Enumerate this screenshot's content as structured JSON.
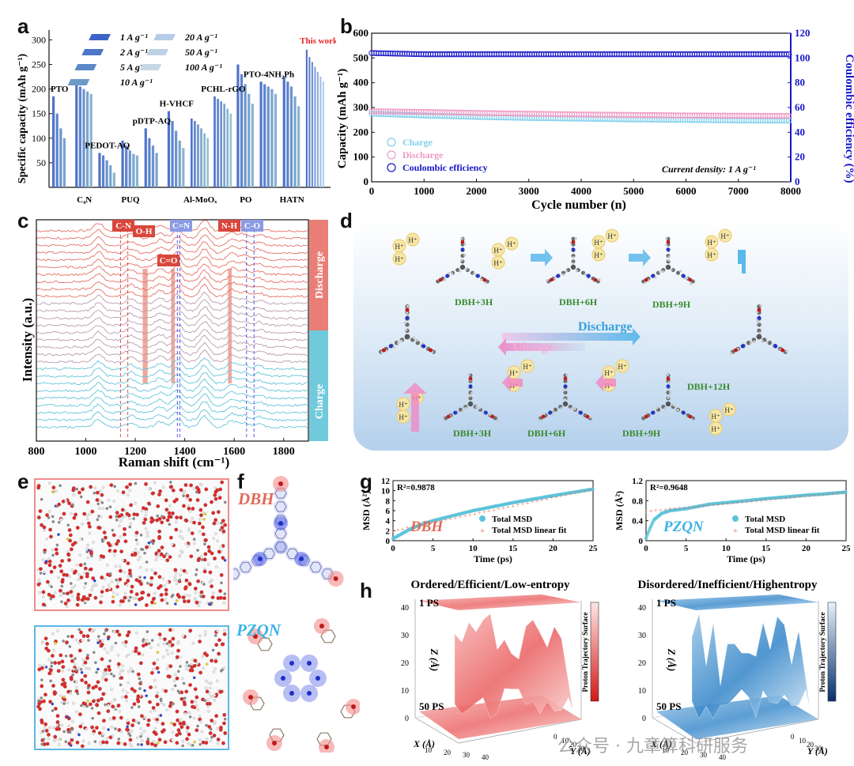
{
  "panel_labels": {
    "a": "a",
    "b": "b",
    "c": "c",
    "d": "d",
    "e": "e",
    "f": "f",
    "g": "g",
    "h": "h"
  },
  "colors": {
    "blue_dark": "#2f4fb0",
    "blue_light": "#9fbbe6",
    "pink": "#ef9ac4",
    "cyan": "#7fd0ec",
    "red": "#d94a3f",
    "navy": "#1818c8",
    "cyan_line": "#5bc3da",
    "salmon": "#e5705e"
  },
  "chart_data": [
    {
      "id": "a",
      "type": "bar",
      "ylabel": "Specific capacity (mAh g⁻¹)",
      "ylim": [
        0,
        320
      ],
      "yticks": [
        50,
        100,
        150,
        200,
        250,
        300
      ],
      "legend": [
        "1 A g⁻¹",
        "2 A g⁻¹",
        "5 A g⁻¹",
        "10 A g⁻¹",
        "20 A g⁻¹",
        "50 A g⁻¹",
        "100 A g⁻¹"
      ],
      "highlight": "This work",
      "groups": [
        {
          "name": "PTO",
          "values": [
            185,
            150,
            120,
            100
          ],
          "label_pos": "above"
        },
        {
          "name": "C₄N",
          "values": [
            215,
            205,
            200,
            195,
            190
          ],
          "label_pos": "below"
        },
        {
          "name": "PEDOT-AQ",
          "values": [
            70,
            65,
            55,
            45,
            30
          ],
          "label_pos": "above"
        },
        {
          "name": "PUQ",
          "values": [
            95,
            85,
            75,
            68,
            65
          ],
          "label_pos": "below"
        },
        {
          "name": "pDTP-AQ",
          "values": [
            120,
            100,
            85,
            70
          ],
          "label_pos": "above"
        },
        {
          "name": "H-VHCF",
          "values": [
            155,
            135,
            115,
            95,
            80
          ],
          "label_pos": "above"
        },
        {
          "name": "Al-MoOₓ",
          "values": [
            140,
            135,
            128,
            120,
            110,
            100
          ],
          "label_pos": "below"
        },
        {
          "name": "PCHL-rGO",
          "values": [
            185,
            180,
            175,
            170,
            160,
            150
          ],
          "label_pos": "above"
        },
        {
          "name": "PO",
          "values": [
            250,
            230,
            210,
            190,
            170
          ],
          "label_pos": "below"
        },
        {
          "name": "PTO-4NH₂Ph",
          "values": [
            215,
            210,
            205,
            200,
            190
          ],
          "label_pos": "above"
        },
        {
          "name": "HATN",
          "values": [
            225,
            215,
            205,
            185,
            165
          ],
          "label_pos": "below"
        },
        {
          "name": "This work",
          "values": [
            280,
            265,
            255,
            245,
            235,
            225,
            215
          ],
          "label_pos": "none"
        }
      ]
    },
    {
      "id": "b",
      "type": "scatter",
      "xlabel": "Cycle number (n)",
      "ylabel": "Capacity (mAh g⁻¹)",
      "y2label": "Coulombic efficiency (%)",
      "xlim": [
        0,
        8000
      ],
      "ylim": [
        0,
        600
      ],
      "y2lim": [
        0,
        120
      ],
      "xticks": [
        0,
        1000,
        2000,
        3000,
        4000,
        5000,
        6000,
        7000,
        8000
      ],
      "yticks": [
        0,
        100,
        200,
        300,
        400,
        500,
        600
      ],
      "y2ticks": [
        0,
        20,
        40,
        60,
        80,
        100,
        120
      ],
      "annotation": "Current density: 1 A g⁻¹",
      "series": [
        {
          "name": "Charge",
          "x": [
            0,
            1000,
            2000,
            3000,
            4000,
            5000,
            6000,
            7000,
            8000
          ],
          "values": [
            275,
            268,
            262,
            258,
            255,
            252,
            250,
            248,
            247
          ]
        },
        {
          "name": "Discharge",
          "x": [
            0,
            1000,
            2000,
            3000,
            4000,
            5000,
            6000,
            7000,
            8000
          ],
          "values": [
            285,
            282,
            278,
            275,
            272,
            270,
            268,
            267,
            266
          ]
        },
        {
          "name": "Coulombic efficiency",
          "x": [
            0,
            1000,
            2000,
            3000,
            4000,
            5000,
            6000,
            7000,
            8000
          ],
          "values": [
            104,
            103,
            103,
            103,
            103,
            103,
            103,
            103,
            103
          ]
        }
      ]
    },
    {
      "id": "c",
      "type": "line",
      "xlabel": "Raman shift (cm⁻¹)",
      "ylabel": "Intensity (a.u.)",
      "xlim": [
        800,
        1900
      ],
      "xticks": [
        800,
        1000,
        1200,
        1400,
        1600,
        1800
      ],
      "tags": [
        "C-N",
        "O-H",
        "C=N",
        "N-H",
        "C=O",
        "C-O"
      ],
      "side_labels": [
        "Discharge",
        "Charge"
      ]
    },
    {
      "id": "g1",
      "type": "line",
      "xlabel": "Time (ps)",
      "ylabel": "MSD (Å²)",
      "xlim": [
        0,
        25
      ],
      "ylim": [
        0,
        12
      ],
      "xticks": [
        0,
        5,
        10,
        15,
        20,
        25
      ],
      "yticks": [
        0,
        2,
        4,
        6,
        8,
        10,
        12
      ],
      "r2": "R²=0.9878",
      "name": "DBH",
      "series": [
        {
          "name": "Total MSD",
          "x": [
            0,
            1,
            2,
            3,
            4,
            5,
            7,
            10,
            15,
            20,
            25
          ],
          "values": [
            0.4,
            1.3,
            2.2,
            2.9,
            3.5,
            4.0,
            4.8,
            6.0,
            7.6,
            9.0,
            10.3
          ]
        },
        {
          "name": "Total MSD linear fit",
          "x": [
            0,
            25
          ],
          "values": [
            2.0,
            10.3
          ]
        }
      ]
    },
    {
      "id": "g2",
      "type": "line",
      "xlabel": "Time (ps)",
      "ylabel": "MSD (Å²)",
      "xlim": [
        0,
        25
      ],
      "ylim": [
        0,
        1.2
      ],
      "xticks": [
        0,
        5,
        10,
        15,
        20,
        25
      ],
      "yticks": [
        0.0,
        0.4,
        0.8,
        1.2
      ],
      "r2": "R²=0.9648",
      "name": "PZQN",
      "series": [
        {
          "name": "Total MSD",
          "x": [
            0,
            0.5,
            1,
            2,
            3,
            4,
            5,
            6,
            8,
            10,
            12,
            15,
            18,
            20,
            22,
            25
          ],
          "values": [
            0.05,
            0.25,
            0.42,
            0.55,
            0.6,
            0.62,
            0.64,
            0.67,
            0.73,
            0.76,
            0.79,
            0.84,
            0.88,
            0.91,
            0.93,
            0.97
          ]
        },
        {
          "name": "Total MSD linear fit",
          "x": [
            0,
            25
          ],
          "values": [
            0.59,
            0.97
          ]
        }
      ]
    }
  ],
  "panel_d": {
    "discharge": "Discharge",
    "charge": "Charge",
    "states_top": [
      "DBH+3H",
      "DBH+6H",
      "DBH+9H"
    ],
    "state_right": "DBH+12H",
    "states_bottom": [
      "DBH+3H",
      "DBH+6H",
      "DBH+9H"
    ],
    "proton": "H⁺"
  },
  "panel_e": {},
  "panel_f": {
    "top": "DBH",
    "bottom": "PZQN"
  },
  "panel_h": {
    "left_title": "Ordered/Efficient/Low-entropy",
    "right_title": "Disordered/Inefficient/Highentropy",
    "top_label": "1 PS",
    "bottom_label": "50 PS",
    "zlabel": "Z (Å)",
    "zticks": [
      "0",
      "10",
      "20",
      "30",
      "40"
    ],
    "xlabel": "X (Å)",
    "ylabel": "Y (Å)",
    "xticks": [
      "10",
      "20",
      "30",
      "40"
    ],
    "yticks": [
      "0",
      "10",
      "20",
      "30"
    ],
    "colorbar_label": "Proton Trajectory Surface"
  },
  "watermark": "公众号 · 九章算科研服务"
}
